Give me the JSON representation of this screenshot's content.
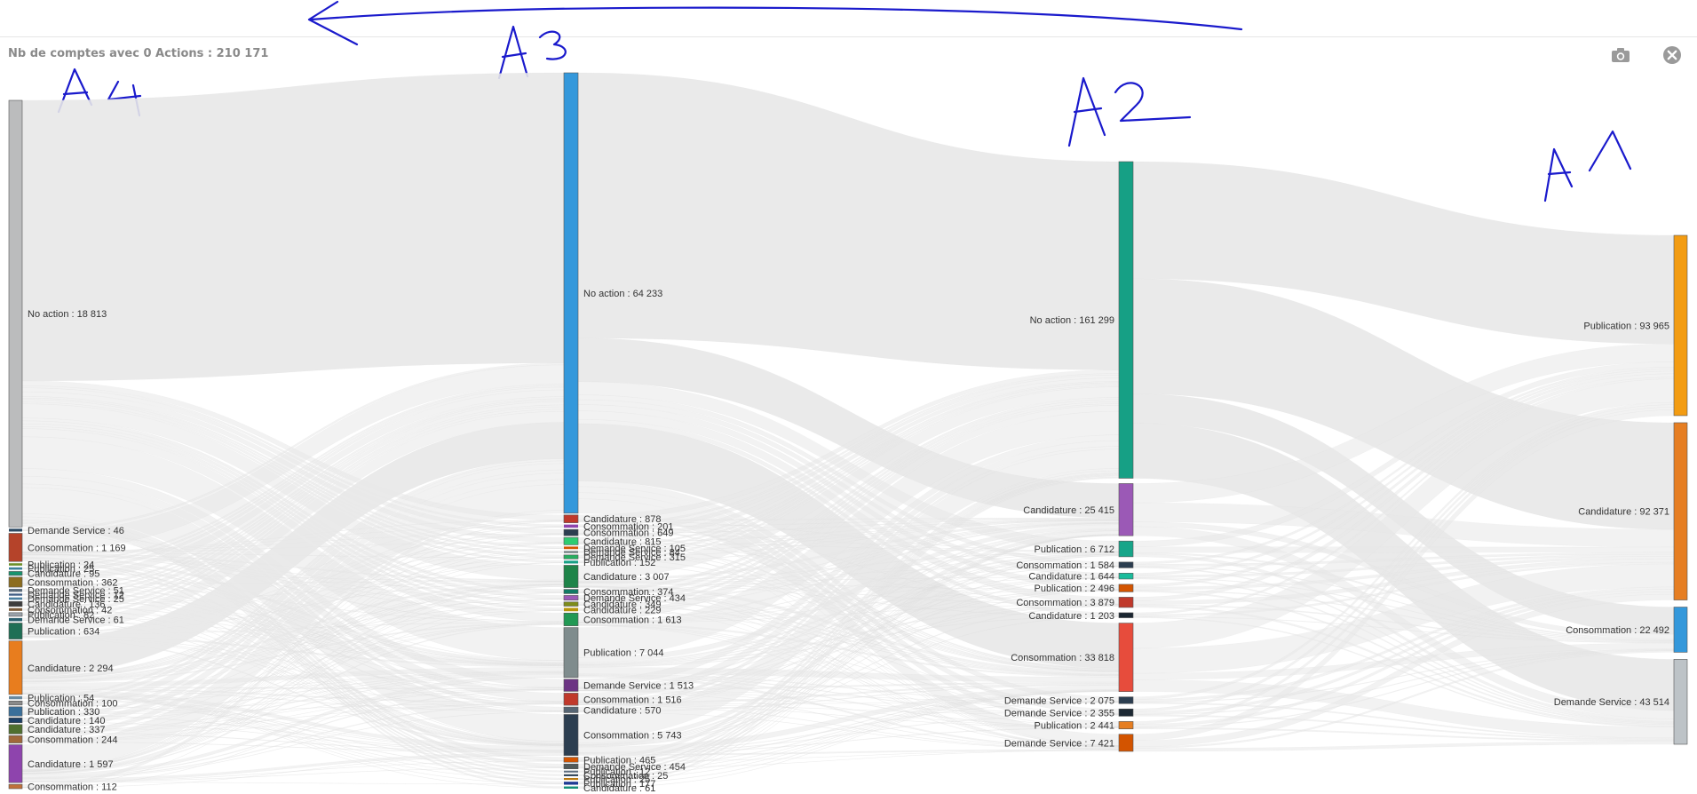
{
  "header": {
    "title": "Nb de comptes avec 0 Actions : 210 171",
    "icons": {
      "snapshot": "camera-icon",
      "close": "close-circle-icon"
    }
  },
  "annotations": {
    "stages": [
      "A4",
      "A3",
      "A2",
      "A1"
    ],
    "direction": "arrow-pointing-left"
  },
  "chart_data": {
    "type": "sankey",
    "title": "Nb de comptes avec 0 Actions : 210 171",
    "node_label_format": "name : value",
    "columns": [
      {
        "stage": "A4",
        "nodes": [
          {
            "name": "No action",
            "value": "18 813",
            "color": "#bbbcbd"
          },
          {
            "name": "Demande Service",
            "value": "46",
            "color": "#2c4a63"
          },
          {
            "name": "Consommation",
            "value": "1 169",
            "color": "#b5432a"
          },
          {
            "name": "Publication",
            "value": "24",
            "color": "#6c8f2a"
          },
          {
            "name": "Publication",
            "value": "25",
            "color": "#3c7f9a"
          },
          {
            "name": "Candidature",
            "value": "95",
            "color": "#17946e"
          },
          {
            "name": "Consommation",
            "value": "362",
            "color": "#8c6d1f"
          },
          {
            "name": "Demande Service",
            "value": "51",
            "color": "#5a6a7a"
          },
          {
            "name": "Demande Service",
            "value": "12",
            "color": "#3f5c83"
          },
          {
            "name": "Demande Service",
            "value": "25",
            "color": "#4a7fa0"
          },
          {
            "name": "Candidature",
            "value": "136",
            "color": "#3d3d3d"
          },
          {
            "name": "Consommation",
            "value": "42",
            "color": "#7a5a3a"
          },
          {
            "name": "Publication",
            "value": "82",
            "color": "#9aa2aa"
          },
          {
            "name": "Demande Service",
            "value": "61",
            "color": "#2b5f6e"
          },
          {
            "name": "Publication",
            "value": "634",
            "color": "#1f6f55"
          },
          {
            "name": "Candidature",
            "value": "2 294",
            "color": "#e87d1e"
          },
          {
            "name": "Publication",
            "value": "54",
            "color": "#6a8aa0"
          },
          {
            "name": "Consommation",
            "value": "100",
            "color": "#8a8a8a"
          },
          {
            "name": "Publication",
            "value": "330",
            "color": "#3a6f9a"
          },
          {
            "name": "Candidature",
            "value": "140",
            "color": "#1c3f66"
          },
          {
            "name": "Candidature",
            "value": "337",
            "color": "#4f6f2f"
          },
          {
            "name": "Consommation",
            "value": "244",
            "color": "#a0683a"
          },
          {
            "name": "Candidature",
            "value": "1 597",
            "color": "#8e44ad"
          },
          {
            "name": "Consommation",
            "value": "112",
            "color": "#c0703a"
          }
        ]
      },
      {
        "stage": "A3",
        "nodes": [
          {
            "name": "No action",
            "value": "64 233",
            "color": "#3498db"
          },
          {
            "name": "Candidature",
            "value": "878",
            "color": "#c0392b"
          },
          {
            "name": "Consommation",
            "value": "201",
            "color": "#8e44ad"
          },
          {
            "name": "Consommation",
            "value": "649",
            "color": "#2c3e50"
          },
          {
            "name": "Candidature",
            "value": "815",
            "color": "#2ecc71"
          },
          {
            "name": "Demande Service",
            "value": "105",
            "color": "#d35400"
          },
          {
            "name": "Demande Service",
            "value": "84",
            "color": "#7f8c8d"
          },
          {
            "name": "Demande Service",
            "value": "315",
            "color": "#27ae60"
          },
          {
            "name": "Publication",
            "value": "152",
            "color": "#16a085"
          },
          {
            "name": "Candidature",
            "value": "3 007",
            "color": "#1e8449"
          },
          {
            "name": "Consommation",
            "value": "374",
            "color": "#117a65"
          },
          {
            "name": "Demande Service",
            "value": "434",
            "color": "#9b59b6"
          },
          {
            "name": "Candidature",
            "value": "349",
            "color": "#7d8c1a"
          },
          {
            "name": "Candidature",
            "value": "229",
            "color": "#b7950b"
          },
          {
            "name": "Consommation",
            "value": "1 613",
            "color": "#229954"
          },
          {
            "name": "Publication",
            "value": "7 044",
            "color": "#7f8c8d"
          },
          {
            "name": "Demande Service",
            "value": "1 513",
            "color": "#6c3483"
          },
          {
            "name": "Consommation",
            "value": "1 516",
            "color": "#c0392b"
          },
          {
            "name": "Candidature",
            "value": "570",
            "color": "#566573"
          },
          {
            "name": "Consommation",
            "value": "5 743",
            "color": "#2c3e50"
          },
          {
            "name": "Publication",
            "value": "465",
            "color": "#d35400"
          },
          {
            "name": "Demande Service",
            "value": "454",
            "color": "#515a5a"
          },
          {
            "name": "Publication",
            "value": "12",
            "color": "#5d6d7e"
          },
          {
            "name": "Consommation",
            "value": "25",
            "color": "#34495e"
          },
          {
            "name": "Publication",
            "value": "25",
            "color": "#b9770e"
          },
          {
            "name": "Publication",
            "value": "177",
            "color": "#1f3a93"
          },
          {
            "name": "Candidature",
            "value": "61",
            "color": "#148f77"
          }
        ]
      },
      {
        "stage": "A2",
        "nodes": [
          {
            "name": "No action",
            "value": "161 299",
            "color": "#16a085"
          },
          {
            "name": "Candidature",
            "value": "25 415",
            "color": "#9b59b6"
          },
          {
            "name": "Publication",
            "value": "6 712",
            "color": "#17a589"
          },
          {
            "name": "Consommation",
            "value": "1 584",
            "color": "#2c3e50"
          },
          {
            "name": "Candidature",
            "value": "1 644",
            "color": "#1abc9c"
          },
          {
            "name": "Publication",
            "value": "2 496",
            "color": "#d35400"
          },
          {
            "name": "Consommation",
            "value": "3 879",
            "color": "#c0392b"
          },
          {
            "name": "Candidature",
            "value": "1 203",
            "color": "#1b2631"
          },
          {
            "name": "Consommation",
            "value": "33 818",
            "color": "#e74c3c"
          },
          {
            "name": "Demande Service",
            "value": "2 075",
            "color": "#2c3e50"
          },
          {
            "name": "Demande Service",
            "value": "2 355",
            "color": "#1c2833"
          },
          {
            "name": "Publication",
            "value": "2 441",
            "color": "#e67e22"
          },
          {
            "name": "Demande Service",
            "value": "7 421",
            "color": "#d35400"
          }
        ]
      },
      {
        "stage": "A1",
        "nodes": [
          {
            "name": "Publication",
            "value": "93 965",
            "color": "#f39c12"
          },
          {
            "name": "Candidature",
            "value": "92 371",
            "color": "#e67e22"
          },
          {
            "name": "Consommation",
            "value": "22 492",
            "color": "#3498db"
          },
          {
            "name": "Demande Service",
            "value": "43 514",
            "color": "#bdc3c7"
          }
        ]
      }
    ],
    "links_color": "#e8e8e8",
    "legend": "none",
    "grid": false
  }
}
